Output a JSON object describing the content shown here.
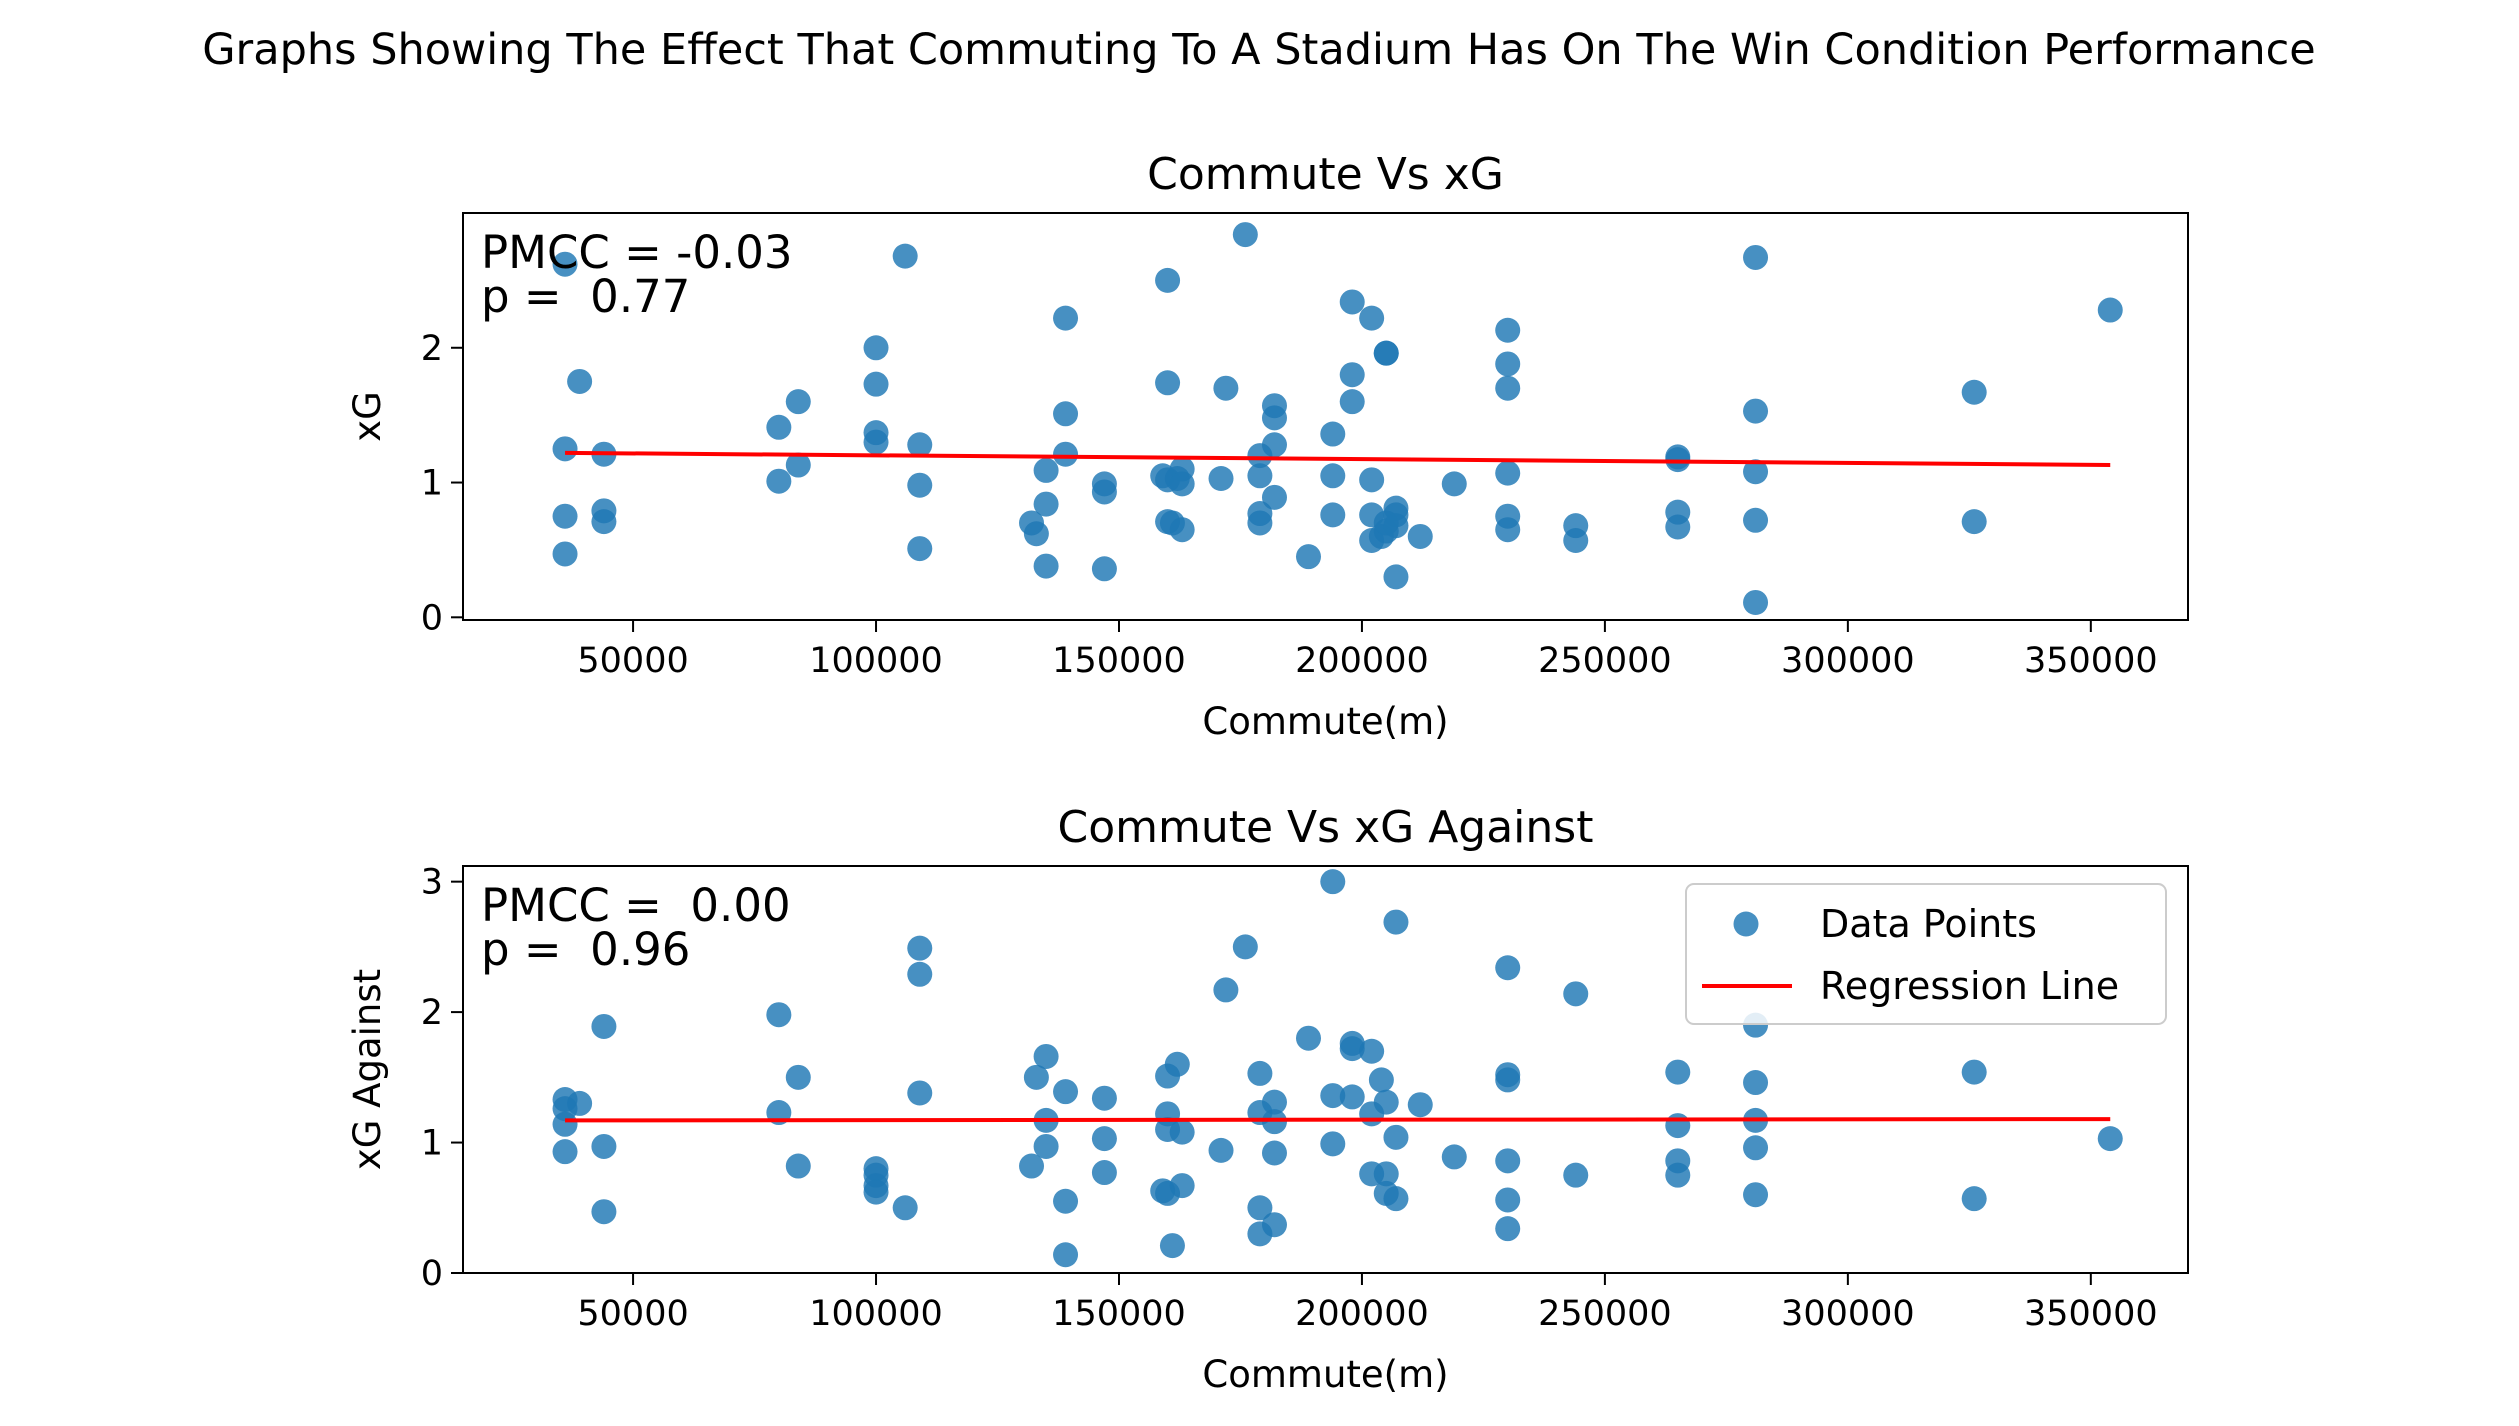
{
  "figure": {
    "suptitle": "Graphs Showing The Effect That Commuting To A Stadium Has On The Win Condition Performance"
  },
  "legend": {
    "placement": "upper right (second panel)",
    "items": [
      {
        "label": "Data Points",
        "kind": "marker",
        "color": "#1f77b4"
      },
      {
        "label": "Regression Line",
        "kind": "line",
        "color": "#ff0000"
      }
    ]
  },
  "colors": {
    "points": "#1f77b4",
    "regression": "#ff0000",
    "axes": "#000000"
  },
  "chart_data": [
    {
      "type": "scatter",
      "title": "Commute Vs xG",
      "xlabel": "Commute(m)",
      "ylabel": "xG",
      "xlim": [
        15000,
        370000
      ],
      "ylim": [
        -0.02,
        3.0
      ],
      "xticks": [
        50000,
        100000,
        150000,
        200000,
        250000,
        300000,
        350000
      ],
      "yticks": [
        0,
        1,
        2
      ],
      "grid": false,
      "annotation_lines": [
        "PMCC = -0.03",
        "p =  0.77"
      ],
      "regression": {
        "x": [
          36000,
          354000
        ],
        "y": [
          1.22,
          1.13
        ]
      },
      "points": [
        [
          36000,
          2.62
        ],
        [
          36000,
          1.25
        ],
        [
          36000,
          0.75
        ],
        [
          36000,
          0.47
        ],
        [
          39000,
          1.75
        ],
        [
          44000,
          1.21
        ],
        [
          44000,
          0.79
        ],
        [
          44000,
          0.71
        ],
        [
          80000,
          1.41
        ],
        [
          80000,
          1.01
        ],
        [
          84000,
          1.6
        ],
        [
          84000,
          1.13
        ],
        [
          100000,
          2.0
        ],
        [
          100000,
          1.73
        ],
        [
          100000,
          1.37
        ],
        [
          100000,
          1.3
        ],
        [
          106000,
          2.68
        ],
        [
          109000,
          1.28
        ],
        [
          109000,
          0.98
        ],
        [
          109000,
          0.51
        ],
        [
          132000,
          0.7
        ],
        [
          133000,
          0.62
        ],
        [
          135000,
          0.84
        ],
        [
          135000,
          1.09
        ],
        [
          135000,
          0.38
        ],
        [
          139000,
          2.22
        ],
        [
          139000,
          1.51
        ],
        [
          139000,
          1.21
        ],
        [
          147000,
          0.99
        ],
        [
          147000,
          0.93
        ],
        [
          147000,
          0.36
        ],
        [
          159000,
          1.05
        ],
        [
          160000,
          2.5
        ],
        [
          160000,
          1.74
        ],
        [
          160000,
          1.02
        ],
        [
          160000,
          0.71
        ],
        [
          161000,
          0.7
        ],
        [
          162000,
          1.03
        ],
        [
          163000,
          1.1
        ],
        [
          163000,
          0.99
        ],
        [
          163000,
          0.65
        ],
        [
          171000,
          1.03
        ],
        [
          172000,
          1.7
        ],
        [
          176000,
          2.84
        ],
        [
          179000,
          1.2
        ],
        [
          179000,
          1.05
        ],
        [
          179000,
          0.77
        ],
        [
          179000,
          0.7
        ],
        [
          182000,
          1.57
        ],
        [
          182000,
          1.48
        ],
        [
          182000,
          1.28
        ],
        [
          182000,
          0.89
        ],
        [
          189000,
          0.45
        ],
        [
          194000,
          1.36
        ],
        [
          194000,
          1.05
        ],
        [
          194000,
          0.76
        ],
        [
          198000,
          2.34
        ],
        [
          198000,
          1.8
        ],
        [
          198000,
          1.6
        ],
        [
          202000,
          2.22
        ],
        [
          202000,
          1.02
        ],
        [
          202000,
          0.76
        ],
        [
          202000,
          0.57
        ],
        [
          204000,
          0.6
        ],
        [
          205000,
          1.96
        ],
        [
          205000,
          1.96
        ],
        [
          205000,
          0.64
        ],
        [
          205000,
          0.7
        ],
        [
          207000,
          0.81
        ],
        [
          207000,
          0.76
        ],
        [
          207000,
          0.68
        ],
        [
          207000,
          0.3
        ],
        [
          212000,
          0.6
        ],
        [
          219000,
          0.99
        ],
        [
          230000,
          2.13
        ],
        [
          230000,
          1.88
        ],
        [
          230000,
          1.7
        ],
        [
          230000,
          1.07
        ],
        [
          230000,
          0.75
        ],
        [
          230000,
          0.65
        ],
        [
          244000,
          0.68
        ],
        [
          244000,
          0.57
        ],
        [
          265000,
          1.19
        ],
        [
          265000,
          1.17
        ],
        [
          265000,
          0.78
        ],
        [
          265000,
          0.67
        ],
        [
          281000,
          2.67
        ],
        [
          281000,
          1.53
        ],
        [
          281000,
          1.08
        ],
        [
          281000,
          0.72
        ],
        [
          281000,
          0.11
        ],
        [
          326000,
          1.67
        ],
        [
          326000,
          0.71
        ],
        [
          354000,
          2.28
        ]
      ]
    },
    {
      "type": "scatter",
      "title": "Commute Vs xG Against",
      "xlabel": "Commute(m)",
      "ylabel": "xG Against",
      "xlim": [
        15000,
        370000
      ],
      "ylim": [
        0.0,
        3.12
      ],
      "xticks": [
        50000,
        100000,
        150000,
        200000,
        250000,
        300000,
        350000
      ],
      "yticks": [
        0,
        1,
        2,
        3
      ],
      "grid": false,
      "annotation_lines": [
        "PMCC =  0.00",
        "p =  0.96"
      ],
      "regression": {
        "x": [
          36000,
          354000
        ],
        "y": [
          1.17,
          1.18
        ]
      },
      "points": [
        [
          36000,
          1.33
        ],
        [
          36000,
          1.26
        ],
        [
          36000,
          1.14
        ],
        [
          36000,
          0.93
        ],
        [
          39000,
          1.3
        ],
        [
          44000,
          1.89
        ],
        [
          44000,
          0.97
        ],
        [
          44000,
          0.47
        ],
        [
          80000,
          1.98
        ],
        [
          80000,
          1.23
        ],
        [
          84000,
          1.5
        ],
        [
          84000,
          0.82
        ],
        [
          100000,
          0.8
        ],
        [
          100000,
          0.75
        ],
        [
          100000,
          0.67
        ],
        [
          100000,
          0.62
        ],
        [
          106000,
          0.5
        ],
        [
          109000,
          2.49
        ],
        [
          109000,
          2.29
        ],
        [
          109000,
          1.38
        ],
        [
          132000,
          0.82
        ],
        [
          133000,
          1.5
        ],
        [
          135000,
          1.66
        ],
        [
          135000,
          1.17
        ],
        [
          135000,
          0.97
        ],
        [
          139000,
          1.39
        ],
        [
          139000,
          0.55
        ],
        [
          139000,
          0.14
        ],
        [
          147000,
          1.34
        ],
        [
          147000,
          1.03
        ],
        [
          147000,
          0.77
        ],
        [
          159000,
          0.63
        ],
        [
          160000,
          1.51
        ],
        [
          160000,
          1.22
        ],
        [
          160000,
          1.1
        ],
        [
          160000,
          0.61
        ],
        [
          161000,
          0.21
        ],
        [
          162000,
          1.6
        ],
        [
          163000,
          1.08
        ],
        [
          163000,
          0.67
        ],
        [
          171000,
          0.94
        ],
        [
          172000,
          2.17
        ],
        [
          176000,
          2.5
        ],
        [
          179000,
          1.53
        ],
        [
          179000,
          1.23
        ],
        [
          179000,
          0.5
        ],
        [
          179000,
          0.3
        ],
        [
          182000,
          1.31
        ],
        [
          182000,
          1.16
        ],
        [
          182000,
          0.92
        ],
        [
          182000,
          0.37
        ],
        [
          189000,
          1.8
        ],
        [
          194000,
          3.0
        ],
        [
          194000,
          1.36
        ],
        [
          194000,
          0.99
        ],
        [
          198000,
          1.76
        ],
        [
          198000,
          1.72
        ],
        [
          198000,
          1.35
        ],
        [
          202000,
          1.7
        ],
        [
          202000,
          1.22
        ],
        [
          202000,
          0.76
        ],
        [
          204000,
          1.48
        ],
        [
          205000,
          1.31
        ],
        [
          205000,
          0.76
        ],
        [
          205000,
          0.61
        ],
        [
          207000,
          2.69
        ],
        [
          207000,
          1.04
        ],
        [
          207000,
          0.57
        ],
        [
          212000,
          1.29
        ],
        [
          219000,
          0.89
        ],
        [
          230000,
          2.34
        ],
        [
          230000,
          1.52
        ],
        [
          230000,
          1.48
        ],
        [
          230000,
          0.86
        ],
        [
          230000,
          0.56
        ],
        [
          230000,
          0.34
        ],
        [
          244000,
          2.14
        ],
        [
          244000,
          0.75
        ],
        [
          265000,
          1.54
        ],
        [
          265000,
          1.13
        ],
        [
          265000,
          0.86
        ],
        [
          265000,
          0.75
        ],
        [
          281000,
          1.9
        ],
        [
          281000,
          1.46
        ],
        [
          281000,
          1.17
        ],
        [
          281000,
          0.96
        ],
        [
          281000,
          0.6
        ],
        [
          326000,
          1.54
        ],
        [
          326000,
          0.57
        ],
        [
          354000,
          1.03
        ]
      ]
    }
  ]
}
